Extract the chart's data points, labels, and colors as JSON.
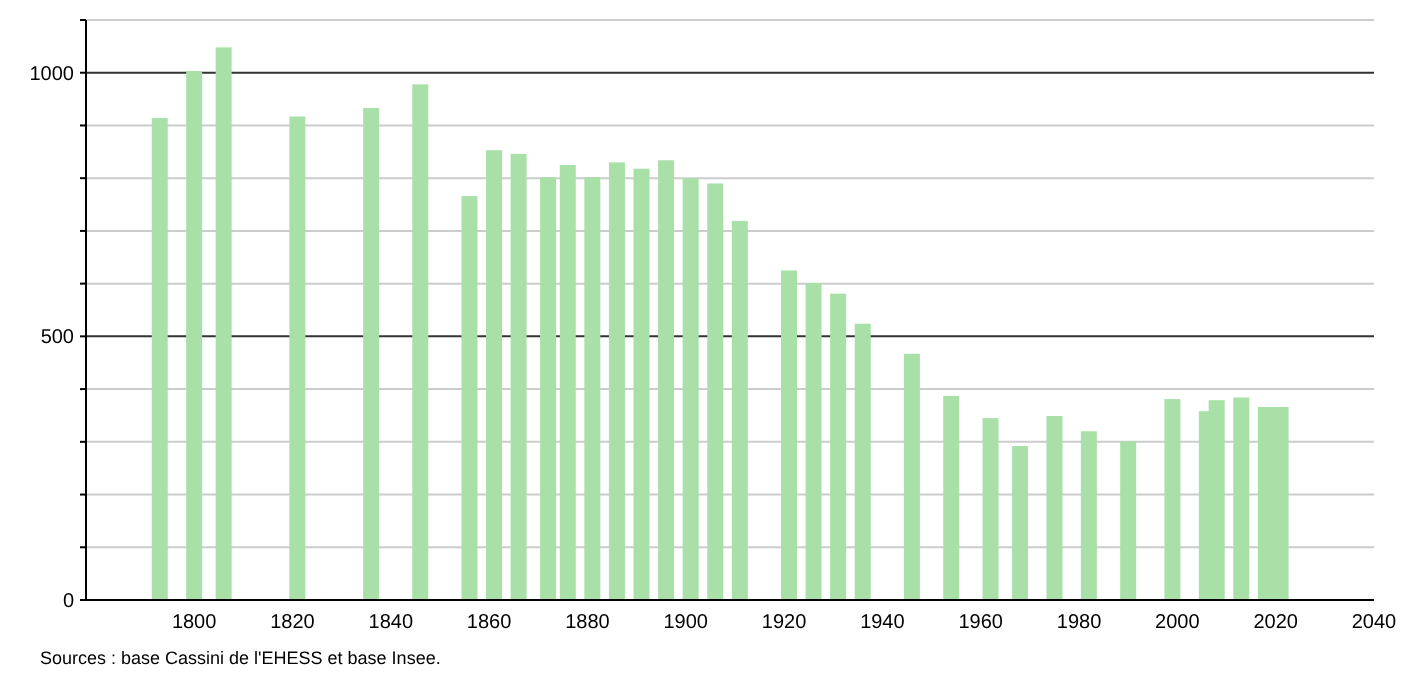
{
  "chart_data": {
    "type": "bar",
    "x": [
      1793,
      1800,
      1806,
      1821,
      1836,
      1846,
      1856,
      1861,
      1866,
      1872,
      1876,
      1881,
      1886,
      1891,
      1896,
      1901,
      1906,
      1911,
      1921,
      1926,
      1931,
      1936,
      1946,
      1954,
      1962,
      1968,
      1975,
      1982,
      1990,
      1999,
      2006,
      2008,
      2013,
      2018,
      2021
    ],
    "values": [
      914,
      1003,
      1048,
      917,
      933,
      978,
      766,
      853,
      846,
      802,
      825,
      802,
      830,
      818,
      834,
      800,
      790,
      719,
      625,
      601,
      581,
      524,
      467,
      387,
      345,
      292,
      349,
      320,
      301,
      381,
      358,
      379,
      384,
      366,
      366
    ],
    "color": "#a8e0a8",
    "xlim": [
      1778,
      2040
    ],
    "xticks": [
      1800,
      1820,
      1840,
      1860,
      1880,
      1900,
      1920,
      1940,
      1960,
      1980,
      2000,
      2020,
      2040
    ],
    "ylim": [
      0,
      1100
    ],
    "yticks": [
      0,
      {
        "value": 100,
        "label": null
      },
      {
        "value": 200,
        "label": null
      },
      {
        "value": 300,
        "label": null
      },
      {
        "value": 400,
        "label": null
      },
      500,
      {
        "value": 600,
        "label": null
      },
      {
        "value": 700,
        "label": null
      },
      {
        "value": 800,
        "label": null
      },
      {
        "value": 900,
        "label": null
      },
      1000,
      {
        "value": 1100,
        "label": null
      }
    ],
    "grid": "y",
    "annotations": [
      "Sources : base Cassini de l'EHESS et base Insee."
    ]
  }
}
